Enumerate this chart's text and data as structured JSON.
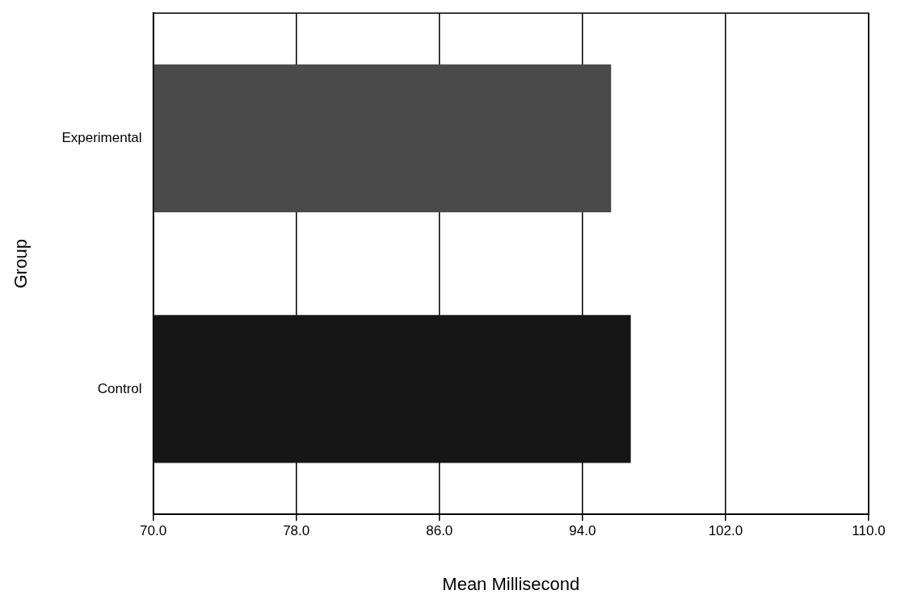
{
  "chart_data": {
    "type": "bar",
    "orientation": "horizontal",
    "xlabel": "Mean Millisecond",
    "ylabel": "Group",
    "categories": [
      "Experimental",
      "Control"
    ],
    "values": [
      95.6,
      96.7
    ],
    "colors": [
      "#4a4a4a",
      "#161616"
    ],
    "xlim": [
      70,
      110
    ],
    "xticks": [
      {
        "value": 70,
        "label": "70.0"
      },
      {
        "value": 78,
        "label": "78.0"
      },
      {
        "value": 86,
        "label": "86.0"
      },
      {
        "value": 94,
        "label": "94.0"
      },
      {
        "value": 102,
        "label": "102.0"
      },
      {
        "value": 110,
        "label": "110.0"
      }
    ],
    "grid": "x",
    "legend": false
  }
}
